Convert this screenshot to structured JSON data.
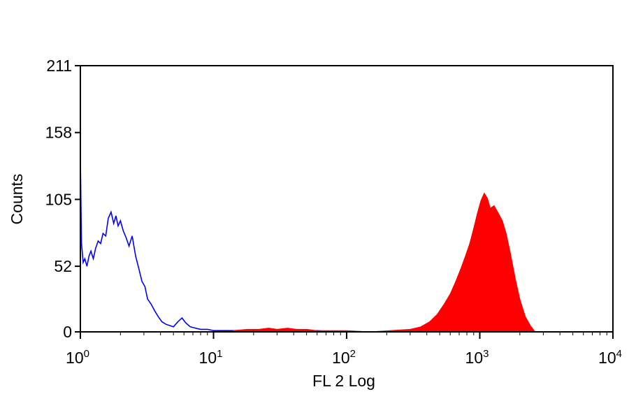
{
  "chart_data": {
    "type": "area",
    "xlabel": "FL 2 Log",
    "ylabel": "Counts",
    "x_scale": "log",
    "xlim": [
      1,
      10000
    ],
    "ylim": [
      0,
      211
    ],
    "x_ticks": [
      {
        "base": "10",
        "exp": "0"
      },
      {
        "base": "10",
        "exp": "1"
      },
      {
        "base": "10",
        "exp": "2"
      },
      {
        "base": "10",
        "exp": "3"
      },
      {
        "base": "10",
        "exp": "4"
      }
    ],
    "y_ticks": [
      "0",
      "52",
      "105",
      "158",
      "211"
    ],
    "y_tick_values": [
      0,
      52,
      105,
      158,
      211
    ],
    "grid": false,
    "series": [
      {
        "style": "outline",
        "color": "#0000ff",
        "x": [
          1.0,
          1.02,
          1.05,
          1.08,
          1.12,
          1.16,
          1.2,
          1.25,
          1.3,
          1.36,
          1.42,
          1.48,
          1.55,
          1.62,
          1.7,
          1.78,
          1.85,
          1.92,
          2.0,
          2.1,
          2.2,
          2.32,
          2.45,
          2.6,
          2.75,
          2.9,
          3.05,
          3.2,
          3.4,
          3.6,
          3.85,
          4.1,
          4.4,
          4.7,
          5.0,
          5.4,
          5.8,
          6.2,
          6.7,
          7.3,
          8.0,
          9.0,
          10.0,
          12.0,
          15.0,
          20.0,
          30.0,
          45.0,
          60.0,
          80.0
        ],
        "values": [
          138,
          70,
          55,
          58,
          52,
          60,
          64,
          58,
          66,
          72,
          70,
          78,
          76,
          90,
          95,
          86,
          92,
          84,
          88,
          80,
          75,
          68,
          76,
          60,
          50,
          40,
          36,
          26,
          22,
          17,
          12,
          8,
          6,
          5,
          4,
          8,
          11,
          7,
          4,
          3,
          2,
          2,
          1,
          1,
          1,
          1,
          1,
          0,
          1,
          0
        ]
      },
      {
        "style": "filled",
        "color": "#ff0000",
        "x": [
          14.0,
          18.0,
          22.0,
          26.0,
          30.0,
          36.0,
          42.0,
          50.0,
          60.0,
          80.0,
          100.0,
          150.0,
          300.0,
          360.0,
          420.0,
          480.0,
          540.0,
          600.0,
          660.0,
          720.0,
          780.0,
          840.0,
          900.0,
          960.0,
          1020.0,
          1080.0,
          1140.0,
          1200.0,
          1280.0,
          1380.0,
          1480.0,
          1580.0,
          1700.0,
          1850.0,
          2000.0,
          2200.0,
          2400.0,
          2600.0
        ],
        "values": [
          1,
          2,
          2,
          3,
          2,
          3,
          2,
          2,
          1,
          1,
          1,
          0,
          2,
          4,
          8,
          14,
          22,
          30,
          40,
          50,
          60,
          70,
          82,
          94,
          104,
          110,
          106,
          98,
          100,
          94,
          88,
          78,
          62,
          42,
          26,
          12,
          5,
          0
        ]
      }
    ]
  }
}
